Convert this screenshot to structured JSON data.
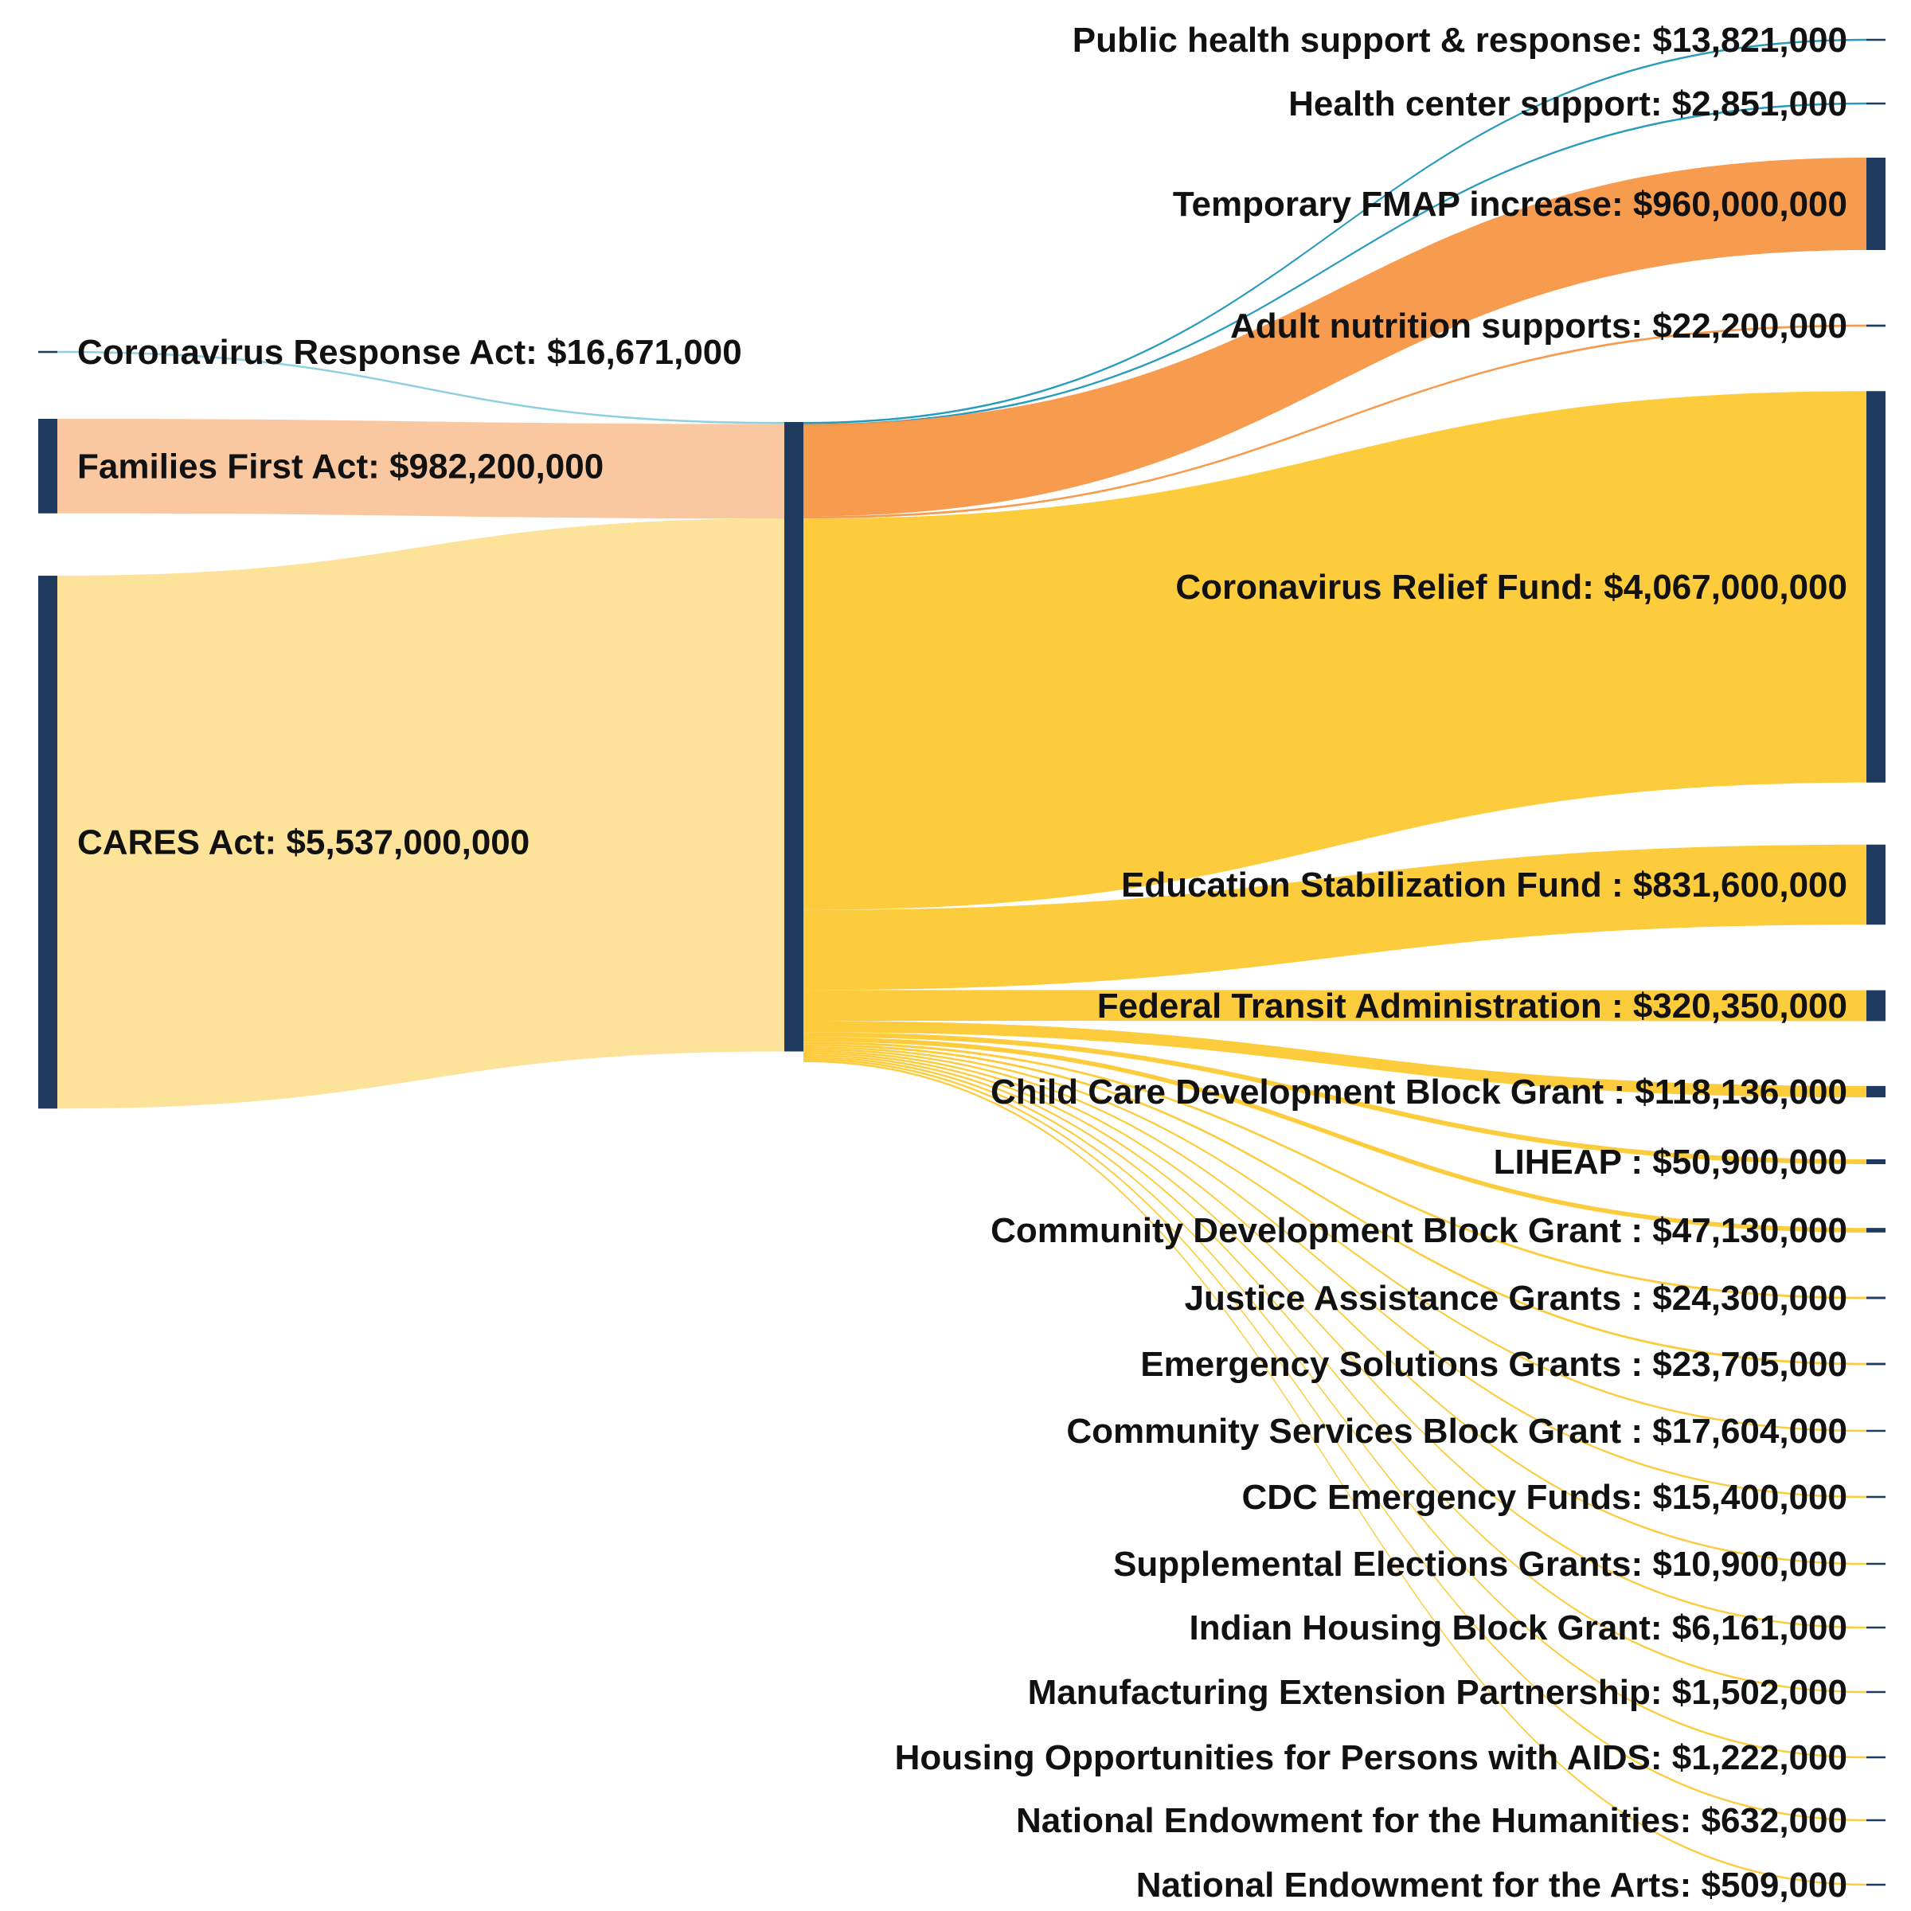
{
  "colors": {
    "node": "#1f3a5f",
    "crsa_link": "#8ecfe0",
    "crsa_out": "#1a96b8",
    "ffa_link": "#f9c8a0",
    "ffa_out": "#f79646",
    "cares_link": "#fde29a",
    "cares_out": "#fdc933"
  },
  "sources": [
    {
      "label": "Coronavirus Response Act: $16,671,000",
      "value": 16671000,
      "group": "crsa"
    },
    {
      "label": "Families First Act: $982,200,000",
      "value": 982200000,
      "group": "ffa"
    },
    {
      "label": "CARES Act: $5,537,000,000",
      "value": 5537000000,
      "group": "cares"
    }
  ],
  "targets": [
    {
      "label": "Public health support & response: $13,821,000",
      "value": 13821000,
      "group": "crsa"
    },
    {
      "label": "Health center support: $2,851,000",
      "value": 2851000,
      "group": "crsa"
    },
    {
      "label": "Temporary FMAP increase: $960,000,000",
      "value": 960000000,
      "group": "ffa"
    },
    {
      "label": "Adult nutrition supports: $22,200,000",
      "value": 22200000,
      "group": "ffa"
    },
    {
      "label": "Coronavirus Relief Fund: $4,067,000,000",
      "value": 4067000000,
      "group": "cares"
    },
    {
      "label": "Education Stabilization Fund : $831,600,000",
      "value": 831600000,
      "group": "cares"
    },
    {
      "label": "Federal Transit Administration : $320,350,000",
      "value": 320350000,
      "group": "cares"
    },
    {
      "label": "Child Care Development Block Grant : $118,136,000",
      "value": 118136000,
      "group": "cares"
    },
    {
      "label": "LIHEAP : $50,900,000",
      "value": 50900000,
      "group": "cares"
    },
    {
      "label": "Community Development Block Grant : $47,130,000",
      "value": 47130000,
      "group": "cares"
    },
    {
      "label": "Justice Assistance Grants : $24,300,000",
      "value": 24300000,
      "group": "cares"
    },
    {
      "label": "Emergency Solutions Grants : $23,705,000",
      "value": 23705000,
      "group": "cares"
    },
    {
      "label": "Community Services Block Grant : $17,604,000",
      "value": 17604000,
      "group": "cares"
    },
    {
      "label": "CDC Emergency Funds: $15,400,000",
      "value": 15400000,
      "group": "cares"
    },
    {
      "label": "Supplemental Elections Grants: $10,900,000",
      "value": 10900000,
      "group": "cares"
    },
    {
      "label": "Indian Housing Block Grant: $6,161,000",
      "value": 6161000,
      "group": "cares"
    },
    {
      "label": "Manufacturing Extension Partnership: $1,502,000",
      "value": 1502000,
      "group": "cares"
    },
    {
      "label": "Housing Opportunities for Persons with AIDS: $1,222,000",
      "value": 1222000,
      "group": "cares"
    },
    {
      "label": "National Endowment for the Humanities: $632,000",
      "value": 632000,
      "group": "cares"
    },
    {
      "label": "National Endowment for the Arts: $509,000",
      "value": 509000,
      "group": "cares"
    }
  ]
}
